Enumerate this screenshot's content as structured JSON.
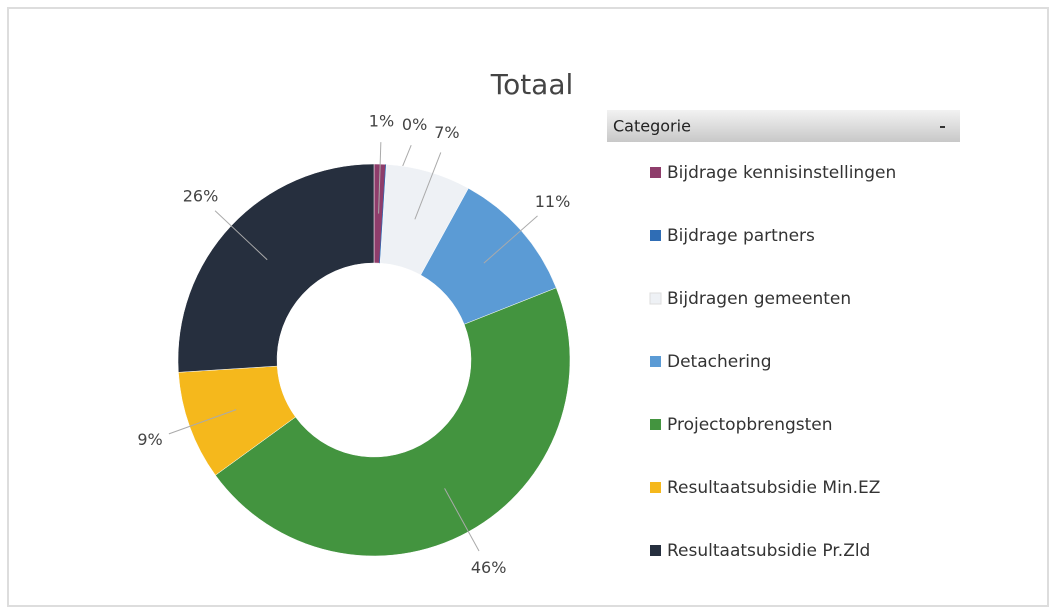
{
  "chart_data": {
    "type": "donut",
    "title": "Totaal",
    "legend_title": "Categorie",
    "categories": [
      "Bijdrage kennisinstellingen",
      "Bijdrage partners",
      "Bijdragen gemeenten",
      "Detachering",
      "Projectopbrengsten",
      "Resultaatsubsidie Min.EZ",
      "Resultaatsubsidie Pr.Zld"
    ],
    "values": [
      1,
      0,
      7,
      11,
      46,
      9,
      26
    ],
    "value_labels": [
      "1%",
      "0%",
      "7%",
      "11%",
      "46%",
      "9%",
      "26%"
    ],
    "colors": [
      "#8e3d6b",
      "#2f6db5",
      "#eef1f5",
      "#5b9bd5",
      "#43943f",
      "#f5b81c",
      "#262f3e"
    ],
    "legend": "right"
  }
}
